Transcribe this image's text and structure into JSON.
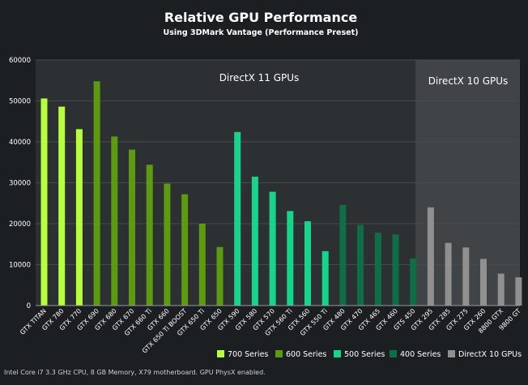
{
  "chart_data": {
    "type": "bar",
    "title": "Relative GPU Performance",
    "subtitle": "Using 3DMark Vantage (Performance Preset)",
    "xlabel": "",
    "ylabel": "",
    "ylim": [
      0,
      60000
    ],
    "yticks": [
      "0",
      "10000",
      "20000",
      "30000",
      "40000",
      "50000",
      "60000"
    ],
    "grid": true,
    "region_labels": [
      "DirectX 11 GPUs",
      "DirectX 10 GPUs"
    ],
    "categories": [
      "GTX TITAN",
      "GTX 780",
      "GTX 770",
      "GTX 690",
      "GTX 680",
      "GTX 670",
      "GTX 660 Ti",
      "GTX 660",
      "GTX 650 Ti BOOST",
      "GTX 650 Ti",
      "GTX 650",
      "GTX 590",
      "GTX 580",
      "GTX 570",
      "GTX 560 Ti",
      "GTX 560",
      "GTX 550 Ti",
      "GTX 480",
      "GTX 470",
      "GTX 465",
      "GTX 460",
      "GTS 450",
      "GTX 295",
      "GTX 285",
      "GTX 275",
      "GTX 260",
      "8800 GTX",
      "9800 GT"
    ],
    "values": [
      50600,
      48600,
      43100,
      54800,
      41300,
      38100,
      34400,
      29800,
      27200,
      20000,
      14300,
      42400,
      31500,
      27800,
      23100,
      20600,
      13300,
      24600,
      19700,
      17800,
      17400,
      11500,
      24000,
      15300,
      14200,
      11400,
      7800,
      6900
    ],
    "series_index": [
      0,
      0,
      0,
      1,
      1,
      1,
      1,
      1,
      1,
      1,
      1,
      2,
      2,
      2,
      2,
      2,
      2,
      3,
      3,
      3,
      3,
      3,
      4,
      4,
      4,
      4,
      4,
      4
    ],
    "series": [
      {
        "name": "700 Series",
        "color": "#b6ff3c"
      },
      {
        "name": "600 Series",
        "color": "#5c9a10"
      },
      {
        "name": "500 Series",
        "color": "#18d48a"
      },
      {
        "name": "400 Series",
        "color": "#0f6e45"
      },
      {
        "name": "DirectX 10 GPUs",
        "color": "#909090"
      }
    ],
    "legend_position": "bottom-right",
    "footnote": "Intel Core i7 3.3 GHz CPU, 8 GB Memory, X79 motherboard. GPU PhysX enabled."
  }
}
